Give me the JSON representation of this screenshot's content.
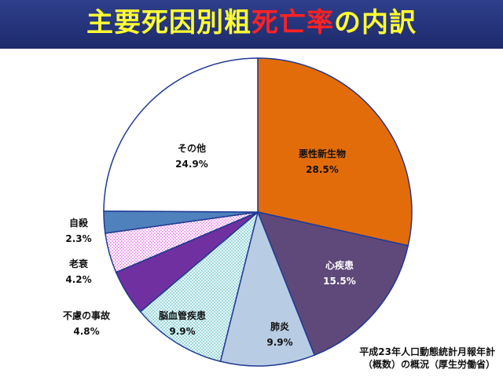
{
  "title": {
    "part1": "主要死因別粗",
    "part2": "死亡率",
    "part3": "の内訳"
  },
  "source": {
    "line1": "平成23年人口動態統計月報年計",
    "line2": "（概数）の概況（厚生労働省）"
  },
  "chart_data": {
    "type": "pie",
    "start": "12 o'clock, clockwise",
    "slices": [
      {
        "label": "悪性新生物",
        "value": 28.5,
        "display": "28.5%",
        "color": "#e36c0a",
        "fill": "solid",
        "label_color": "#111111"
      },
      {
        "label": "心疾患",
        "value": 15.5,
        "display": "15.5%",
        "color": "#5f497a",
        "fill": "solid",
        "label_color": "#ffffff"
      },
      {
        "label": "肺炎",
        "value": 9.9,
        "display": "9.9%",
        "color": "#b8cce4",
        "fill": "solid",
        "label_color": "#111111"
      },
      {
        "label": "脳血管疾患",
        "value": 9.9,
        "display": "9.9%",
        "color": "#8ed3d8",
        "fill": "dots",
        "label_color": "#111111"
      },
      {
        "label": "不慮の事故",
        "value": 4.8,
        "display": "4.8%",
        "color": "#7030a0",
        "fill": "solid",
        "label_color": "#111111"
      },
      {
        "label": "老衰",
        "value": 4.2,
        "display": "4.2%",
        "color": "#e66ce6",
        "fill": "dots",
        "label_color": "#111111"
      },
      {
        "label": "自殺",
        "value": 2.3,
        "display": "2.3%",
        "color": "#4f81bd",
        "fill": "solid",
        "label_color": "#111111"
      },
      {
        "label": "その他",
        "value": 24.9,
        "display": "24.9%",
        "color": "#ffffff",
        "fill": "solid",
        "label_color": "#111111"
      }
    ]
  }
}
